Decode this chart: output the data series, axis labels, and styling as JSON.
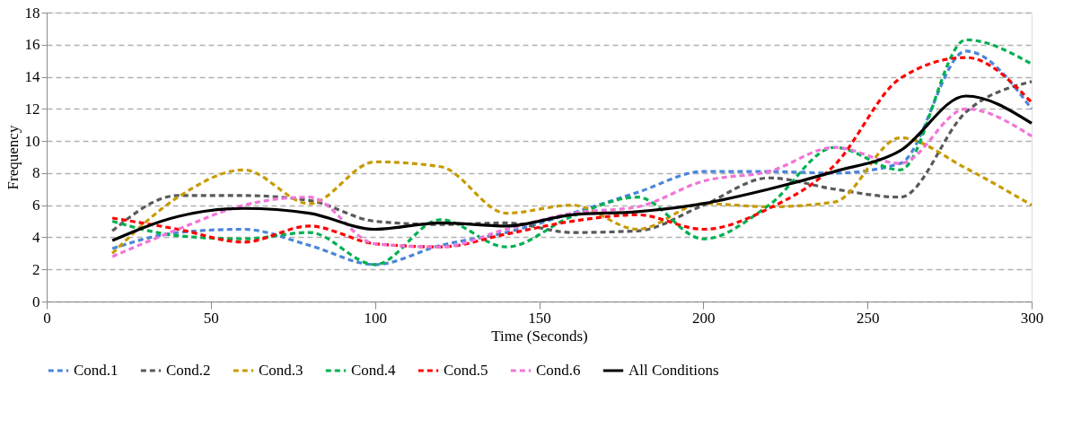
{
  "chart_data": {
    "type": "line",
    "xlabel": "Time (Seconds)",
    "ylabel": "Frequency",
    "x": [
      20,
      40,
      60,
      80,
      100,
      120,
      140,
      160,
      180,
      200,
      220,
      240,
      260,
      280,
      300
    ],
    "xlim": [
      0,
      300
    ],
    "xticks": [
      0,
      50,
      100,
      150,
      200,
      250,
      300
    ],
    "ylim": [
      0,
      18
    ],
    "yticks": [
      0,
      2,
      4,
      6,
      8,
      10,
      12,
      14,
      16,
      18
    ],
    "grid": "y",
    "legend": "bottom",
    "series": [
      {
        "name": "Cond.1",
        "color": "#4a86d8",
        "line_style": "dashed",
        "values": [
          3.3,
          4.3,
          4.5,
          3.5,
          2.3,
          3.5,
          4.3,
          5.5,
          6.8,
          8.1,
          8.1,
          8.0,
          8.6,
          15.6,
          12.0
        ]
      },
      {
        "name": "Cond.2",
        "color": "#595959",
        "line_style": "dashed",
        "values": [
          4.4,
          6.6,
          6.6,
          6.3,
          5.0,
          4.8,
          4.9,
          4.3,
          4.4,
          6.0,
          7.7,
          7.0,
          6.5,
          11.8,
          13.7
        ]
      },
      {
        "name": "Cond.3",
        "color": "#c89a00",
        "line_style": "dashed",
        "values": [
          3.0,
          6.5,
          8.2,
          6.1,
          8.7,
          8.4,
          5.5,
          6.0,
          4.5,
          6.1,
          5.9,
          6.2,
          10.2,
          8.3,
          6.0
        ]
      },
      {
        "name": "Cond.4",
        "color": "#00b050",
        "line_style": "dashed",
        "values": [
          5.0,
          4.1,
          3.9,
          4.3,
          2.3,
          5.1,
          3.4,
          5.3,
          6.5,
          3.9,
          6.0,
          9.6,
          8.2,
          16.3,
          14.8
        ]
      },
      {
        "name": "Cond.5",
        "color": "#ff0000",
        "line_style": "dashed",
        "values": [
          5.2,
          4.5,
          3.7,
          4.7,
          3.6,
          3.4,
          4.2,
          5.0,
          5.4,
          4.5,
          5.8,
          8.5,
          13.9,
          15.2,
          12.4
        ]
      },
      {
        "name": "Cond.6",
        "color": "#f075d8",
        "line_style": "dashed",
        "values": [
          2.8,
          4.5,
          6.0,
          6.5,
          3.6,
          3.4,
          4.5,
          5.5,
          5.9,
          7.5,
          8.1,
          9.6,
          8.6,
          12.0,
          10.3
        ]
      },
      {
        "name": "All Conditions",
        "color": "#000000",
        "line_style": "solid",
        "values": [
          3.8,
          5.3,
          5.8,
          5.5,
          4.5,
          4.9,
          4.7,
          5.4,
          5.6,
          6.1,
          7.0,
          8.1,
          9.4,
          12.8,
          11.1
        ]
      }
    ]
  }
}
